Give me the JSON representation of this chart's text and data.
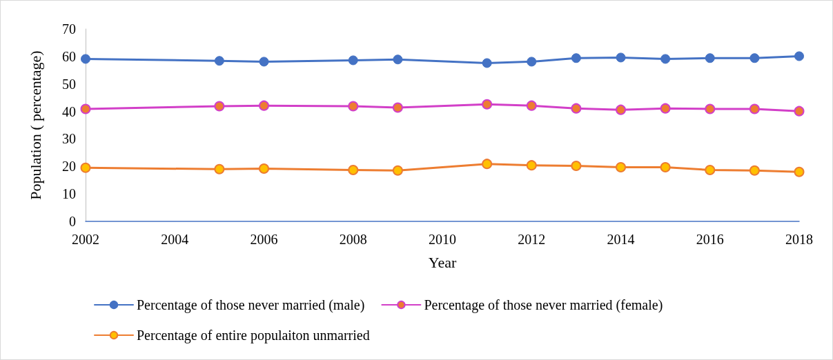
{
  "chart_data": {
    "type": "line",
    "xlabel": "Year",
    "ylabel": "Population ( percentage)",
    "x": [
      2002,
      2005,
      2006,
      2008,
      2009,
      2011,
      2012,
      2013,
      2014,
      2015,
      2016,
      2017,
      2018
    ],
    "xlim": [
      2002,
      2018
    ],
    "xticks": [
      2002,
      2004,
      2006,
      2008,
      2010,
      2012,
      2014,
      2016,
      2018
    ],
    "ylim": [
      0,
      70
    ],
    "yticks": [
      0,
      10,
      20,
      30,
      40,
      50,
      60,
      70
    ],
    "grid": false,
    "legend": "bottom",
    "marker": "circle",
    "line_style": "solid",
    "series": [
      {
        "name": "Percentage of those never married (male)",
        "color": "#4472c4",
        "values": [
          59.1,
          58.4,
          58.1,
          58.6,
          58.9,
          57.6,
          58.1,
          59.4,
          59.6,
          59.1,
          59.4,
          59.4,
          60.1
        ]
      },
      {
        "name": "Percentage of those never married (female)",
        "color": "#d23fc8",
        "colors": [
          "#ed7d31",
          "#ed7d31",
          "#ed7d31",
          "#ed7d31",
          "#ed7d31",
          "#ed7d31",
          "#ed7d31",
          "#ed7d31",
          "#ed7d31",
          "#ed7d31",
          "#ed7d31",
          "#ed7d31",
          "#ed7d31"
        ],
        "values": [
          40.9,
          41.9,
          42.1,
          41.9,
          41.4,
          42.6,
          42.1,
          41.1,
          40.6,
          41.1,
          40.9,
          40.9,
          40.1
        ]
      },
      {
        "name": "Percentage of entire populaiton unmarried",
        "color": "#ed7d31",
        "colors": [
          "#ffc000",
          "#ffc000",
          "#ffc000",
          "#ffc000",
          "#ffc000",
          "#ffc000",
          "#ffc000",
          "#ffc000",
          "#ffc000",
          "#ffc000",
          "#ffc000",
          "#ffc000",
          "#ffc000"
        ],
        "values": [
          19.5,
          19.0,
          19.2,
          18.7,
          18.5,
          20.9,
          20.4,
          20.2,
          19.7,
          19.7,
          18.7,
          18.5,
          18.0
        ]
      }
    ]
  }
}
